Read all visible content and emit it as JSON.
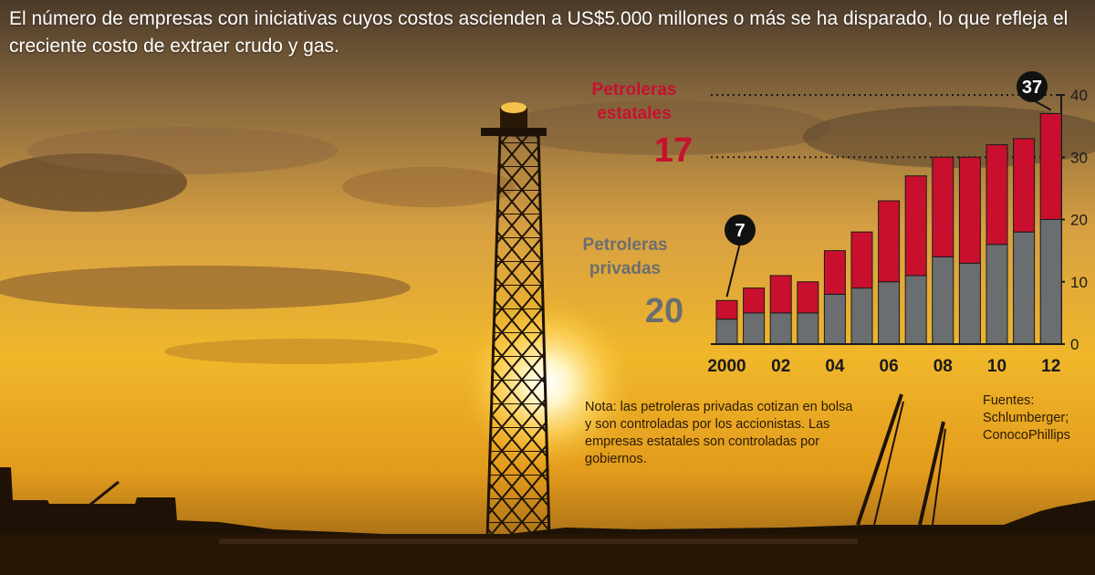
{
  "headline": "El número de empresas con iniciativas cuyos costos ascienden a US$5.000 millones o más se ha disparado, lo que refleja el creciente costo de extraer crudo y gas.",
  "legend": {
    "state_label": "Petroleras estatales",
    "state_value": "17",
    "private_label": "Petroleras privadas",
    "private_value": "20"
  },
  "callouts": {
    "first": "7",
    "last": "37"
  },
  "note": "Nota: las petroleras privadas cotizan en bolsa y son controladas por los accionistas. Las empresas estatales son controladas por gobiernos.",
  "sources": "Fuentes: Schlumberger; ConocoPhillips",
  "colors": {
    "state": "#c8102e",
    "private": "#6b6e70",
    "axis": "#1a1a1a"
  },
  "chart_data": {
    "type": "bar",
    "stacked": true,
    "x": [
      "2000",
      "2001",
      "2002",
      "2003",
      "2004",
      "2005",
      "2006",
      "2007",
      "2008",
      "2009",
      "2010",
      "2011",
      "2012"
    ],
    "x_tick_labels": [
      "2000",
      "02",
      "04",
      "06",
      "08",
      "10",
      "12"
    ],
    "series": [
      {
        "name": "Petroleras privadas",
        "values": [
          4,
          5,
          5,
          5,
          8,
          9,
          10,
          11,
          14,
          13,
          16,
          18,
          20
        ]
      },
      {
        "name": "Petroleras estatales",
        "values": [
          3,
          4,
          6,
          5,
          7,
          9,
          13,
          16,
          16,
          17,
          16,
          15,
          17
        ]
      }
    ],
    "totals": [
      7,
      9,
      11,
      10,
      15,
      18,
      23,
      27,
      30,
      30,
      32,
      33,
      37
    ],
    "ylim": [
      0,
      40
    ],
    "y_ticks": [
      "0",
      "10",
      "20",
      "30",
      "40"
    ],
    "y_axis_side": "right",
    "grid": "dotted lines at 30 and 40"
  }
}
